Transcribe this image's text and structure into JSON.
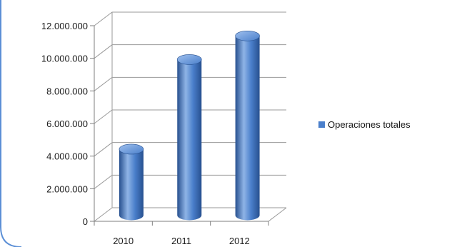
{
  "chart_data": {
    "type": "bar",
    "categories": [
      "2010",
      "2011",
      "2012"
    ],
    "series": [
      {
        "name": "Operaciones totales",
        "values": [
          4050000,
          9550000,
          11000000
        ]
      }
    ],
    "ylim": [
      0,
      12000000
    ],
    "yticks": [
      0,
      2000000,
      4000000,
      6000000,
      8000000,
      10000000,
      12000000
    ],
    "ytick_labels": [
      "0",
      "2.000.000",
      "4.000.000",
      "6.000.000",
      "8.000.000",
      "10.000.000",
      "12.000.000"
    ],
    "grid": true,
    "style": "3d-cylinder",
    "legend_position": "right",
    "colors": {
      "bar": "#4a7fcb",
      "bar_dark": "#27508f",
      "bar_light": "#8fb4e6",
      "grid": "#9a9a9a",
      "frame_accent": "#5b8fd6"
    }
  },
  "legend": {
    "label": "Operaciones totales"
  }
}
